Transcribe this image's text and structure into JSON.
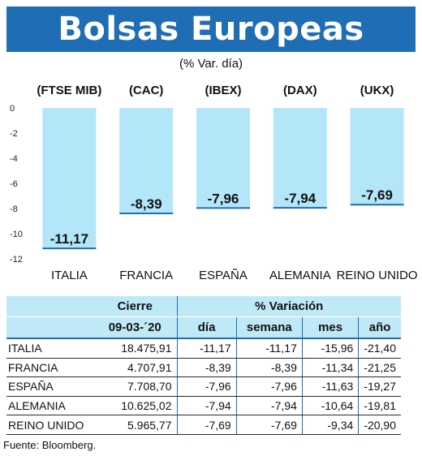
{
  "header": {
    "title": "Bolsas Europeas",
    "subtitle": "(% Var. día)",
    "source": "Fuente: Bloomberg."
  },
  "colors": {
    "banner": "#1f6db4",
    "bar": "#b3e6f8",
    "table_header": "#bfe9f6"
  },
  "chart_data": {
    "type": "bar",
    "categories": [
      "ITALIA",
      "FRANCIA",
      "ESPAÑA",
      "ALEMANIA",
      "REINO UNIDO"
    ],
    "indices": [
      "(FTSE MIB)",
      "(CAC)",
      "(IBEX)",
      "(DAX)",
      "(UKX)"
    ],
    "values": [
      -11.17,
      -8.39,
      -7.96,
      -7.94,
      -7.69
    ],
    "value_labels": [
      "-11,17",
      "-8,39",
      "-7,96",
      "-7,94",
      "-7,69"
    ],
    "yticks": [
      0,
      -2,
      -4,
      -6,
      -8,
      -10,
      -12
    ],
    "ylim": [
      -12,
      0
    ],
    "grid": false
  },
  "table": {
    "group_headers": [
      "Cierre",
      "% Variación"
    ],
    "columns": [
      "09-03-´20",
      "día",
      "semana",
      "mes",
      "año"
    ],
    "rows": [
      {
        "name": "ITALIA",
        "cierre": "18.475,91",
        "dia": "-11,17",
        "semana": "-11,17",
        "mes": "-15,96",
        "ano": "-21,40"
      },
      {
        "name": "FRANCIA",
        "cierre": "4.707,91",
        "dia": "-8,39",
        "semana": "-8,39",
        "mes": "-11,34",
        "ano": "-21,25"
      },
      {
        "name": "ESPAÑA",
        "cierre": "7.708,70",
        "dia": "-7,96",
        "semana": "-7,96",
        "mes": "-11,63",
        "ano": "-19,27"
      },
      {
        "name": "ALEMANIA",
        "cierre": "10.625,02",
        "dia": "-7,94",
        "semana": "-7,94",
        "mes": "-10,64",
        "ano": "-19,81"
      },
      {
        "name": "REINO UNIDO",
        "cierre": "5.965,77",
        "dia": "-7,69",
        "semana": "-7,69",
        "mes": "-9,34",
        "ano": "-20,90"
      }
    ]
  }
}
